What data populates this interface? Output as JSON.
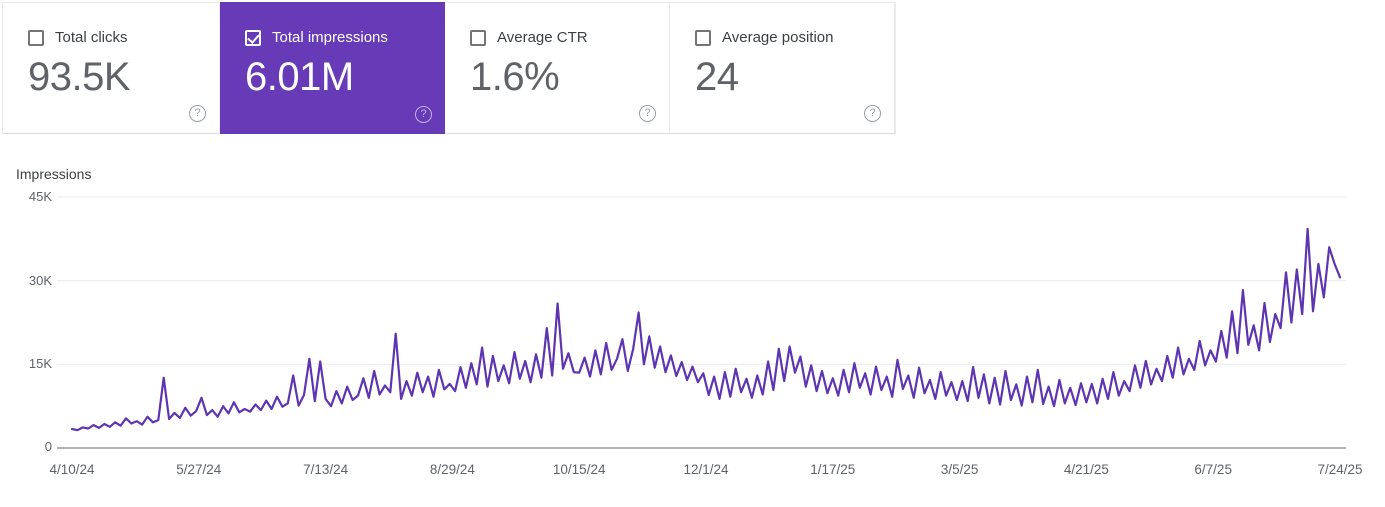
{
  "colors": {
    "selected_card_bg": "#673ab7",
    "line": "#5e35b1",
    "gridline": "#e9ebef",
    "baseline": "#82878c"
  },
  "metric_cards": [
    {
      "label": "Total clicks",
      "value": "93.5K",
      "checked": false,
      "selected": false,
      "help_glyph": "?"
    },
    {
      "label": "Total impressions",
      "value": "6.01M",
      "checked": true,
      "selected": true,
      "help_glyph": "?"
    },
    {
      "label": "Average CTR",
      "value": "1.6%",
      "checked": false,
      "selected": false,
      "help_glyph": "?"
    },
    {
      "label": "Average position",
      "value": "24",
      "checked": false,
      "selected": false,
      "help_glyph": "?"
    }
  ],
  "chart": {
    "axis_title": "Impressions"
  },
  "chart_data": {
    "type": "line",
    "title": "Impressions",
    "series_name": "Total impressions",
    "unit": "thousands of impressions per day",
    "sampling": "values sampled ~every 2 days from 4/10/24 through 7/24/25",
    "x_tick_labels": [
      "4/10/24",
      "5/27/24",
      "7/13/24",
      "8/29/24",
      "10/15/24",
      "12/1/24",
      "1/17/25",
      "3/5/25",
      "4/21/25",
      "6/7/25",
      "7/24/25"
    ],
    "y_tick_labels": [
      "0",
      "15K",
      "30K",
      "45K"
    ],
    "ylim": [
      0,
      45
    ],
    "grid": true,
    "legend": false,
    "values": [
      3.4,
      3.2,
      3.7,
      3.5,
      4.1,
      3.6,
      4.3,
      3.8,
      4.6,
      4.0,
      5.3,
      4.4,
      4.8,
      4.2,
      5.6,
      4.6,
      5.0,
      12.6,
      5.2,
      6.3,
      5.4,
      7.2,
      5.8,
      6.6,
      9.0,
      5.9,
      6.8,
      5.6,
      7.5,
      6.2,
      8.2,
      6.4,
      7.0,
      6.5,
      7.8,
      6.8,
      8.5,
      7.0,
      9.2,
      7.4,
      8.0,
      13.0,
      7.6,
      9.5,
      16.0,
      8.4,
      15.5,
      8.8,
      7.5,
      10.2,
      8.0,
      11.0,
      8.6,
      9.4,
      12.5,
      9.0,
      13.8,
      9.6,
      11.2,
      10.0,
      20.5,
      8.8,
      12.0,
      9.4,
      13.5,
      10.0,
      12.8,
      9.2,
      14.0,
      10.5,
      11.5,
      10.2,
      14.5,
      10.8,
      15.2,
      11.4,
      18.0,
      11.0,
      16.5,
      12.0,
      14.8,
      11.6,
      17.2,
      12.4,
      15.6,
      11.8,
      16.8,
      12.6,
      21.5,
      13.0,
      25.9,
      14.2,
      17.0,
      13.6,
      13.5,
      16.2,
      12.8,
      17.5,
      13.2,
      18.8,
      14.0,
      16.0,
      19.5,
      13.8,
      17.8,
      24.3,
      15.0,
      20.0,
      14.4,
      18.2,
      13.6,
      16.6,
      12.9,
      15.4,
      12.2,
      14.6,
      11.8,
      13.4,
      9.5,
      12.8,
      8.8,
      13.6,
      9.2,
      14.2,
      10.0,
      12.4,
      9.0,
      13.0,
      9.6,
      15.5,
      10.4,
      17.8,
      12.0,
      18.2,
      13.5,
      16.4,
      11.0,
      14.8,
      10.2,
      13.8,
      9.8,
      12.5,
      9.4,
      14.0,
      10.0,
      15.2,
      10.8,
      13.4,
      9.6,
      14.6,
      10.4,
      12.8,
      9.2,
      15.8,
      10.6,
      13.0,
      9.0,
      14.4,
      9.8,
      12.2,
      8.8,
      13.6,
      9.4,
      11.8,
      8.6,
      12.0,
      8.4,
      14.5,
      9.0,
      13.2,
      8.0,
      12.6,
      7.8,
      13.8,
      8.6,
      11.4,
      7.6,
      12.8,
      8.2,
      14.0,
      7.9,
      11.0,
      7.5,
      12.2,
      8.0,
      10.8,
      7.7,
      11.6,
      8.2,
      11.5,
      8.0,
      12.4,
      8.8,
      13.6,
      9.4,
      12.0,
      10.2,
      14.8,
      10.8,
      15.6,
      11.4,
      14.2,
      12.0,
      16.5,
      12.6,
      18.0,
      13.2,
      16.0,
      14.0,
      19.2,
      14.8,
      17.5,
      15.5,
      21.0,
      16.2,
      24.5,
      17.0,
      28.3,
      18.5,
      22.0,
      17.5,
      26.0,
      19.0,
      24.0,
      21.5,
      31.5,
      22.5,
      32.0,
      24.0,
      39.3,
      24.5,
      33.0,
      27.0,
      36.0,
      33.0,
      30.6
    ]
  }
}
